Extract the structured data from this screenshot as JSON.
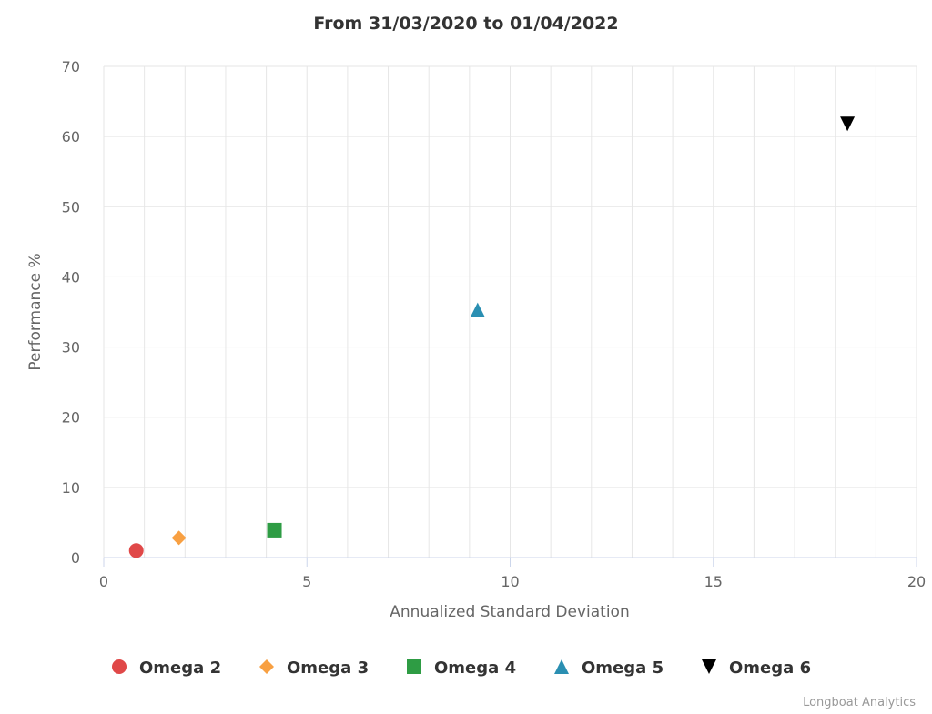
{
  "chart_data": {
    "type": "scatter",
    "title": "From 31/03/2020 to 01/04/2022",
    "xlabel": "Annualized Standard Deviation",
    "ylabel": "Performance %",
    "xlim": [
      0,
      20
    ],
    "ylim": [
      0,
      70
    ],
    "x_ticks": [
      0,
      5,
      10,
      15,
      20
    ],
    "y_ticks": [
      0,
      10,
      20,
      30,
      40,
      50,
      60,
      70
    ],
    "grid": true,
    "legend_position": "bottom",
    "series": [
      {
        "name": "Omega 2",
        "x": 0.8,
        "y": 1.0,
        "marker": "circle",
        "color": "#e04848"
      },
      {
        "name": "Omega 3",
        "x": 1.85,
        "y": 2.8,
        "marker": "diamond",
        "color": "#f8a042"
      },
      {
        "name": "Omega 4",
        "x": 4.2,
        "y": 3.9,
        "marker": "square",
        "color": "#2e9c44"
      },
      {
        "name": "Omega 5",
        "x": 9.2,
        "y": 35.3,
        "marker": "triangle",
        "color": "#2a8fb2"
      },
      {
        "name": "Omega 6",
        "x": 18.3,
        "y": 61.8,
        "marker": "triangle-down",
        "color": "#000000"
      }
    ]
  },
  "credits": "Longboat Analytics"
}
